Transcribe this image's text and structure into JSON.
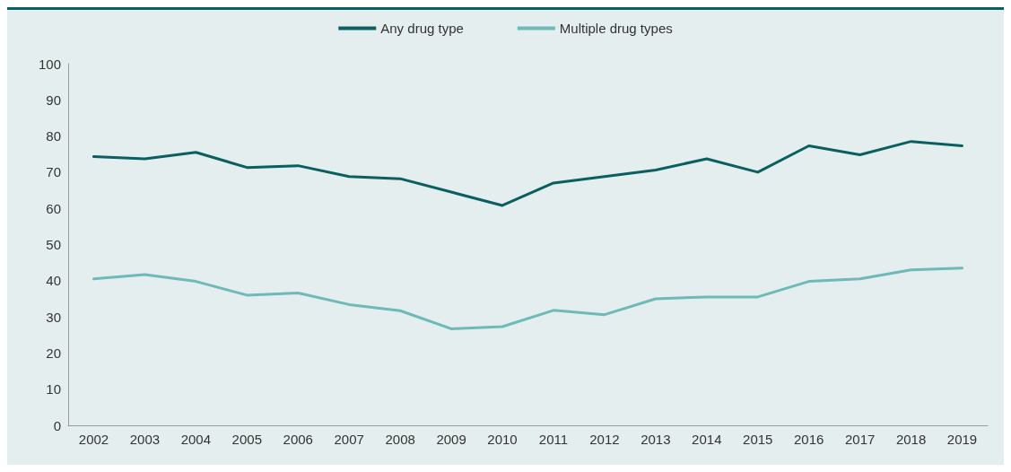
{
  "chart_data": {
    "type": "line",
    "categories": [
      "2002",
      "2003",
      "2004",
      "2005",
      "2006",
      "2007",
      "2008",
      "2009",
      "2010",
      "2011",
      "2012",
      "2013",
      "2014",
      "2015",
      "2016",
      "2017",
      "2018",
      "2019"
    ],
    "series": [
      {
        "name": "Any drug type",
        "color": "#0b5f60",
        "values": [
          74.3,
          73.7,
          75.5,
          71.3,
          71.8,
          68.8,
          68.2,
          64.5,
          60.8,
          67,
          68.8,
          70.6,
          73.7,
          70,
          77.3,
          74.8,
          78.5,
          77.3
        ]
      },
      {
        "name": "Multiple drug types",
        "color": "#6dbab6",
        "values": [
          40.5,
          41.7,
          39.8,
          36,
          36.6,
          33.4,
          31.7,
          26.7,
          27.3,
          31.8,
          30.6,
          35,
          35.5,
          35.5,
          39.8,
          40.5,
          43,
          43.5
        ]
      }
    ],
    "ylim": [
      0,
      100
    ],
    "yticks": [
      0,
      10,
      20,
      30,
      40,
      50,
      60,
      70,
      80,
      90,
      100
    ],
    "grid": false,
    "legend": "top",
    "marker": "none",
    "line_style": "solid"
  }
}
